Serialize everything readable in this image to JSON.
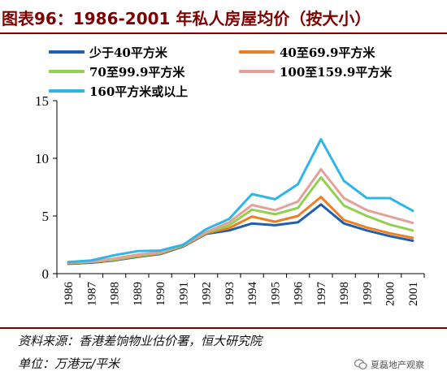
{
  "title": "图表96：1986-2001 年私人房屋均价（按大小）",
  "source_line": "资料来源：香港差饷物业估价署，恒大研究院",
  "unit_line": "单位：万港元/平米",
  "watermark": "夏磊地产观察",
  "colors": {
    "frame": "#7f0000",
    "axis": "#000000"
  },
  "chart_data": {
    "type": "line",
    "title": "",
    "xlabel": "",
    "ylabel": "",
    "categories": [
      "1986",
      "1987",
      "1988",
      "1989",
      "1990",
      "1991",
      "1992",
      "1993",
      "1994",
      "1995",
      "1996",
      "1997",
      "1998",
      "1999",
      "2000",
      "2001"
    ],
    "ylim": [
      0,
      15
    ],
    "yticks": [
      0,
      5,
      10,
      15
    ],
    "grid": false,
    "legend_position": "top",
    "series": [
      {
        "name": "少于40平方米",
        "color": "#1f5fb0",
        "values": [
          0.85,
          0.95,
          1.15,
          1.45,
          1.7,
          2.35,
          3.45,
          3.75,
          4.35,
          4.2,
          4.45,
          6.0,
          4.35,
          3.75,
          3.25,
          2.85
        ]
      },
      {
        "name": "40至69.9平方米",
        "color": "#ef7d22",
        "values": [
          0.9,
          1.0,
          1.2,
          1.5,
          1.75,
          2.4,
          3.5,
          3.95,
          4.95,
          4.5,
          5.0,
          6.65,
          4.65,
          4.0,
          3.5,
          3.1
        ]
      },
      {
        "name": "70至99.9平方米",
        "color": "#92d050",
        "values": [
          0.92,
          1.02,
          1.22,
          1.55,
          1.8,
          2.45,
          3.55,
          4.2,
          5.55,
          5.15,
          5.7,
          8.35,
          5.9,
          5.0,
          4.25,
          3.75
        ]
      },
      {
        "name": "100至159.9平方米",
        "color": "#e6a09a",
        "values": [
          0.95,
          1.05,
          1.3,
          1.65,
          1.85,
          2.5,
          3.6,
          4.45,
          5.95,
          5.5,
          6.25,
          9.05,
          6.55,
          5.5,
          4.95,
          4.4
        ]
      },
      {
        "name": "160平方米或以上",
        "color": "#2fb5e8",
        "values": [
          1.0,
          1.15,
          1.6,
          1.95,
          2.0,
          2.5,
          3.85,
          4.75,
          6.9,
          6.45,
          7.75,
          11.65,
          8.05,
          6.55,
          6.55,
          5.45
        ]
      }
    ]
  }
}
